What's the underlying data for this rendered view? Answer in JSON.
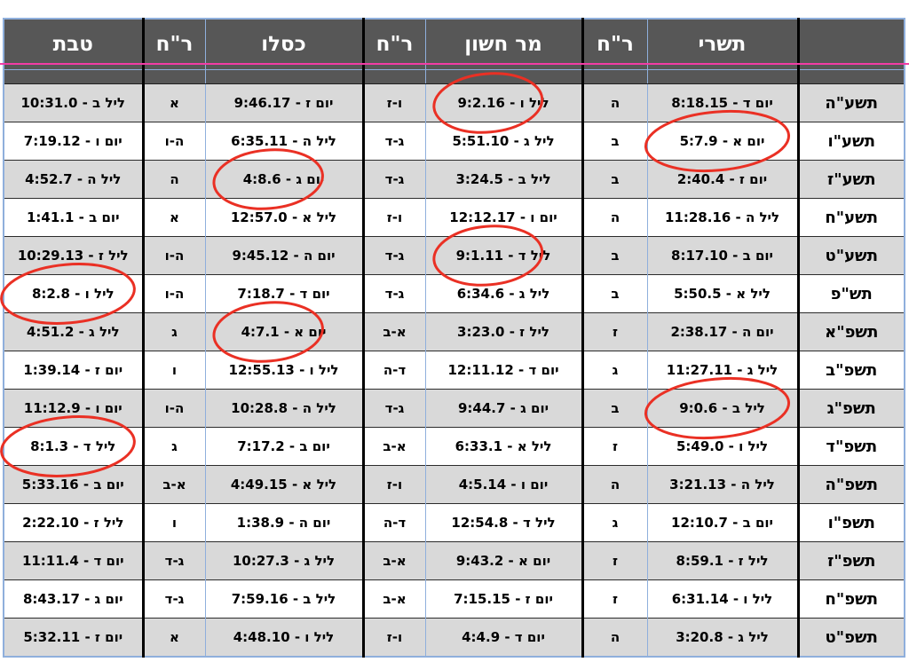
{
  "table": {
    "columns": [
      "year",
      "tishrei",
      "rch1",
      "cheshvan",
      "rch2",
      "kislev",
      "rch3",
      "tevet"
    ],
    "headers": {
      "year": "",
      "tishrei": "תשרי",
      "rch1": "ר\"ח",
      "cheshvan": "מר חשון",
      "rch2": "ר\"ח",
      "kislev": "כסלו",
      "rch3": "ר\"ח",
      "tevet": "טבת"
    },
    "rows": [
      {
        "year": "תשע\"ה",
        "tishrei": "יום ד - 8:18.15",
        "rch1": "ה",
        "cheshvan": "ליל ו - 9:2.16",
        "rch2": "ו-ז",
        "kislev": "יום ז - 9:46.17",
        "rch3": "א",
        "tevet": "ליל ב - 10:31.0"
      },
      {
        "year": "תשע\"ו",
        "tishrei": "יום א - 5:7.9",
        "rch1": "ב",
        "cheshvan": "ליל ג - 5:51.10",
        "rch2": "ג-ד",
        "kislev": "ליל ה - 6:35.11",
        "rch3": "ה-ו",
        "tevet": "יום ו - 7:19.12"
      },
      {
        "year": "תשע\"ז",
        "tishrei": "יום ז - 2:40.4",
        "rch1": "ב",
        "cheshvan": "ליל ב - 3:24.5",
        "rch2": "ג-ד",
        "kislev": "יום ג - 4:8.6",
        "rch3": "ה",
        "tevet": "ליל ה - 4:52.7"
      },
      {
        "year": "תשע\"ח",
        "tishrei": "ליל ה - 11:28.16",
        "rch1": "ה",
        "cheshvan": "יום ו - 12:12.17",
        "rch2": "ו-ז",
        "kislev": "ליל א - 12:57.0",
        "rch3": "א",
        "tevet": "יום ב - 1:41.1"
      },
      {
        "year": "תשע\"ט",
        "tishrei": "יום ב - 8:17.10",
        "rch1": "ב",
        "cheshvan": "ליל ד - 9:1.11",
        "rch2": "ג-ד",
        "kislev": "יום ה - 9:45.12",
        "rch3": "ה-ו",
        "tevet": "ליל ז - 10:29.13"
      },
      {
        "year": "תש\"פ",
        "tishrei": "ליל א - 5:50.5",
        "rch1": "ב",
        "cheshvan": "ליל ג - 6:34.6",
        "rch2": "ג-ד",
        "kislev": "יום ד - 7:18.7",
        "rch3": "ה-ו",
        "tevet": "ליל ו - 8:2.8"
      },
      {
        "year": "תשפ\"א",
        "tishrei": "יום ה - 2:38.17",
        "rch1": "ז",
        "cheshvan": "ליל ז - 3:23.0",
        "rch2": "א-ב",
        "kislev": "יום א - 4:7.1",
        "rch3": "ג",
        "tevet": "ליל ג - 4:51.2"
      },
      {
        "year": "תשפ\"ב",
        "tishrei": "ליל ג - 11:27.11",
        "rch1": "ג",
        "cheshvan": "יום ד - 12:11.12",
        "rch2": "ד-ה",
        "kislev": "ליל ו - 12:55.13",
        "rch3": "ו",
        "tevet": "יום ז - 1:39.14"
      },
      {
        "year": "תשפ\"ג",
        "tishrei": "ליל ב - 9:0.6",
        "rch1": "ב",
        "cheshvan": "יום ג - 9:44.7",
        "rch2": "ג-ד",
        "kislev": "ליל ה - 10:28.8",
        "rch3": "ה-ו",
        "tevet": "יום ו - 11:12.9"
      },
      {
        "year": "תשפ\"ד",
        "tishrei": "ליל ו - 5:49.0",
        "rch1": "ז",
        "cheshvan": "ליל א - 6:33.1",
        "rch2": "א-ב",
        "kislev": "יום ב - 7:17.2",
        "rch3": "ג",
        "tevet": "ליל ד - 8:1.3"
      },
      {
        "year": "תשפ\"ה",
        "tishrei": "ליל ה - 3:21.13",
        "rch1": "ה",
        "cheshvan": "יום ו - 4:5.14",
        "rch2": "ו-ז",
        "kislev": "ליל א - 4:49.15",
        "rch3": "א-ב",
        "tevet": "יום ב - 5:33.16"
      },
      {
        "year": "תשפ\"ו",
        "tishrei": "יום ב - 12:10.7",
        "rch1": "ג",
        "cheshvan": "ליל ד - 12:54.8",
        "rch2": "ד-ה",
        "kislev": "יום ה - 1:38.9",
        "rch3": "ו",
        "tevet": "ליל ז - 2:22.10"
      },
      {
        "year": "תשפ\"ז",
        "tishrei": "ליל ז - 8:59.1",
        "rch1": "ז",
        "cheshvan": "יום א - 9:43.2",
        "rch2": "א-ב",
        "kislev": "ליל ג - 10:27.3",
        "rch3": "ג-ד",
        "tevet": "יום ד - 11:11.4"
      },
      {
        "year": "תשפ\"ח",
        "tishrei": "ליל ו - 6:31.14",
        "rch1": "ז",
        "cheshvan": "יום ז - 7:15.15",
        "rch2": "א-ב",
        "kislev": "ליל ב - 7:59.16",
        "rch3": "ג-ד",
        "tevet": "יום ג - 8:43.17"
      },
      {
        "year": "תשפ\"ט",
        "tishrei": "ליל ג - 3:20.8",
        "rch1": "ה",
        "cheshvan": "יום ד - 4:4.9",
        "rch2": "ו-ז",
        "kislev": "ליל ו - 4:48.10",
        "rch3": "א",
        "tevet": "יום ז - 5:32.11"
      }
    ]
  },
  "annotations": {
    "circles": [
      {
        "row": 0,
        "column": "cheshvan",
        "extent": "number"
      },
      {
        "row": 1,
        "column": "tishrei",
        "extent": "cell"
      },
      {
        "row": 2,
        "column": "kislev",
        "extent": "number"
      },
      {
        "row": 4,
        "column": "cheshvan",
        "extent": "number"
      },
      {
        "row": 5,
        "column": "tevet",
        "extent": "cell"
      },
      {
        "row": 6,
        "column": "kislev",
        "extent": "number"
      },
      {
        "row": 8,
        "column": "tishrei",
        "extent": "cell"
      },
      {
        "row": 9,
        "column": "tevet",
        "extent": "cell"
      }
    ]
  },
  "colors": {
    "header_bg": "#575757",
    "header_text": "#ffffff",
    "row_alt": "#d9d9d9",
    "row": "#ffffff",
    "grid_blue": "#8fafdc",
    "grid_dark": "#2b2b2b",
    "group_border": "#000000",
    "annotation_red": "#ea3024",
    "pink_line": "#f23ca6"
  }
}
